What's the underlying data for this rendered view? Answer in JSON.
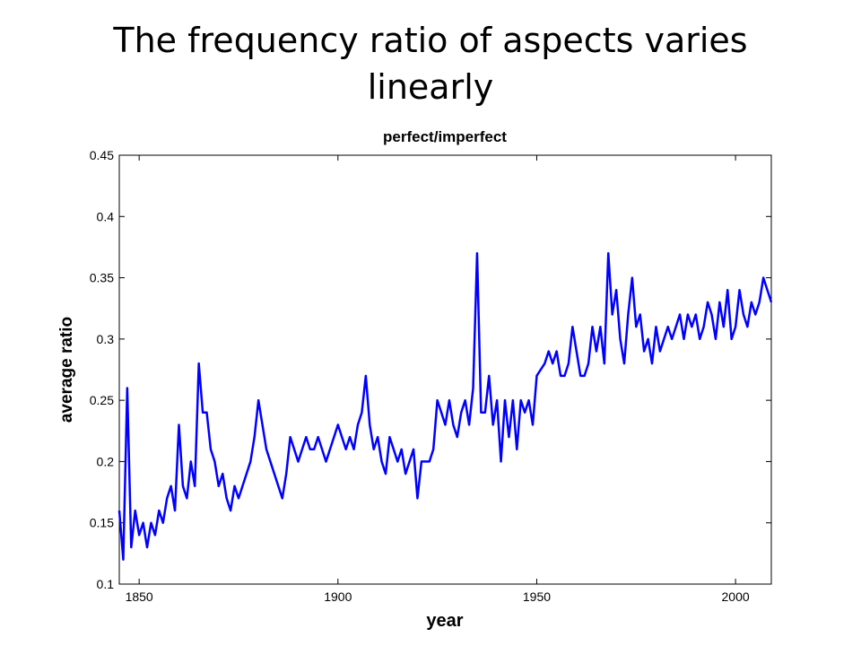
{
  "heading": "The frequency ratio of aspects varies linearly",
  "chart_data": {
    "type": "line",
    "title": "perfect/imperfect",
    "x_label": "year",
    "y_label": "average ratio",
    "x": [
      1845,
      1846,
      1847,
      1848,
      1849,
      1850,
      1851,
      1852,
      1853,
      1854,
      1855,
      1856,
      1857,
      1858,
      1859,
      1860,
      1861,
      1862,
      1863,
      1864,
      1865,
      1866,
      1867,
      1868,
      1869,
      1870,
      1871,
      1872,
      1873,
      1874,
      1875,
      1876,
      1877,
      1878,
      1879,
      1880,
      1881,
      1882,
      1883,
      1884,
      1885,
      1886,
      1887,
      1888,
      1889,
      1890,
      1891,
      1892,
      1893,
      1894,
      1895,
      1896,
      1897,
      1898,
      1899,
      1900,
      1901,
      1902,
      1903,
      1904,
      1905,
      1906,
      1907,
      1908,
      1909,
      1910,
      1911,
      1912,
      1913,
      1914,
      1915,
      1916,
      1917,
      1918,
      1919,
      1920,
      1921,
      1922,
      1923,
      1924,
      1925,
      1926,
      1927,
      1928,
      1929,
      1930,
      1931,
      1932,
      1933,
      1934,
      1935,
      1936,
      1937,
      1938,
      1939,
      1940,
      1941,
      1942,
      1943,
      1944,
      1945,
      1946,
      1947,
      1948,
      1949,
      1950,
      1951,
      1952,
      1953,
      1954,
      1955,
      1956,
      1957,
      1958,
      1959,
      1960,
      1961,
      1962,
      1963,
      1964,
      1965,
      1966,
      1967,
      1968,
      1969,
      1970,
      1971,
      1972,
      1973,
      1974,
      1975,
      1976,
      1977,
      1978,
      1979,
      1980,
      1981,
      1982,
      1983,
      1984,
      1985,
      1986,
      1987,
      1988,
      1989,
      1990,
      1991,
      1992,
      1993,
      1994,
      1995,
      1996,
      1997,
      1998,
      1999,
      2000,
      2001,
      2002,
      2003,
      2004,
      2005,
      2006,
      2007,
      2008,
      2009
    ],
    "series": [
      {
        "name": "perfect/imperfect",
        "color": "#0000ff",
        "values": [
          0.16,
          0.12,
          0.26,
          0.13,
          0.16,
          0.14,
          0.15,
          0.13,
          0.15,
          0.14,
          0.16,
          0.15,
          0.17,
          0.18,
          0.16,
          0.23,
          0.18,
          0.17,
          0.2,
          0.18,
          0.28,
          0.24,
          0.24,
          0.21,
          0.2,
          0.18,
          0.19,
          0.17,
          0.16,
          0.18,
          0.17,
          0.18,
          0.19,
          0.2,
          0.22,
          0.25,
          0.23,
          0.21,
          0.2,
          0.19,
          0.18,
          0.17,
          0.19,
          0.22,
          0.21,
          0.2,
          0.21,
          0.22,
          0.21,
          0.21,
          0.22,
          0.21,
          0.2,
          0.21,
          0.22,
          0.23,
          0.22,
          0.21,
          0.22,
          0.21,
          0.23,
          0.24,
          0.27,
          0.23,
          0.21,
          0.22,
          0.2,
          0.19,
          0.22,
          0.21,
          0.2,
          0.21,
          0.19,
          0.2,
          0.21,
          0.17,
          0.2,
          0.2,
          0.2,
          0.21,
          0.25,
          0.24,
          0.23,
          0.25,
          0.23,
          0.22,
          0.24,
          0.25,
          0.23,
          0.26,
          0.37,
          0.24,
          0.24,
          0.27,
          0.23,
          0.25,
          0.2,
          0.25,
          0.22,
          0.25,
          0.21,
          0.25,
          0.24,
          0.25,
          0.23,
          0.27,
          0.275,
          0.28,
          0.29,
          0.28,
          0.29,
          0.27,
          0.27,
          0.28,
          0.31,
          0.29,
          0.27,
          0.27,
          0.28,
          0.31,
          0.29,
          0.31,
          0.28,
          0.37,
          0.32,
          0.34,
          0.3,
          0.28,
          0.32,
          0.35,
          0.31,
          0.32,
          0.29,
          0.3,
          0.28,
          0.31,
          0.29,
          0.3,
          0.31,
          0.3,
          0.31,
          0.32,
          0.3,
          0.32,
          0.31,
          0.32,
          0.3,
          0.31,
          0.33,
          0.32,
          0.3,
          0.33,
          0.31,
          0.34,
          0.3,
          0.31,
          0.34,
          0.32,
          0.31,
          0.33,
          0.32,
          0.33,
          0.35,
          0.34,
          0.33
        ]
      }
    ],
    "xlim": [
      1845,
      2009
    ],
    "ylim": [
      0.1,
      0.45
    ],
    "xticks": [
      1850,
      1900,
      1950,
      2000
    ],
    "yticks": [
      0.1,
      0.15,
      0.2,
      0.25,
      0.3,
      0.35,
      0.4,
      0.45
    ]
  }
}
